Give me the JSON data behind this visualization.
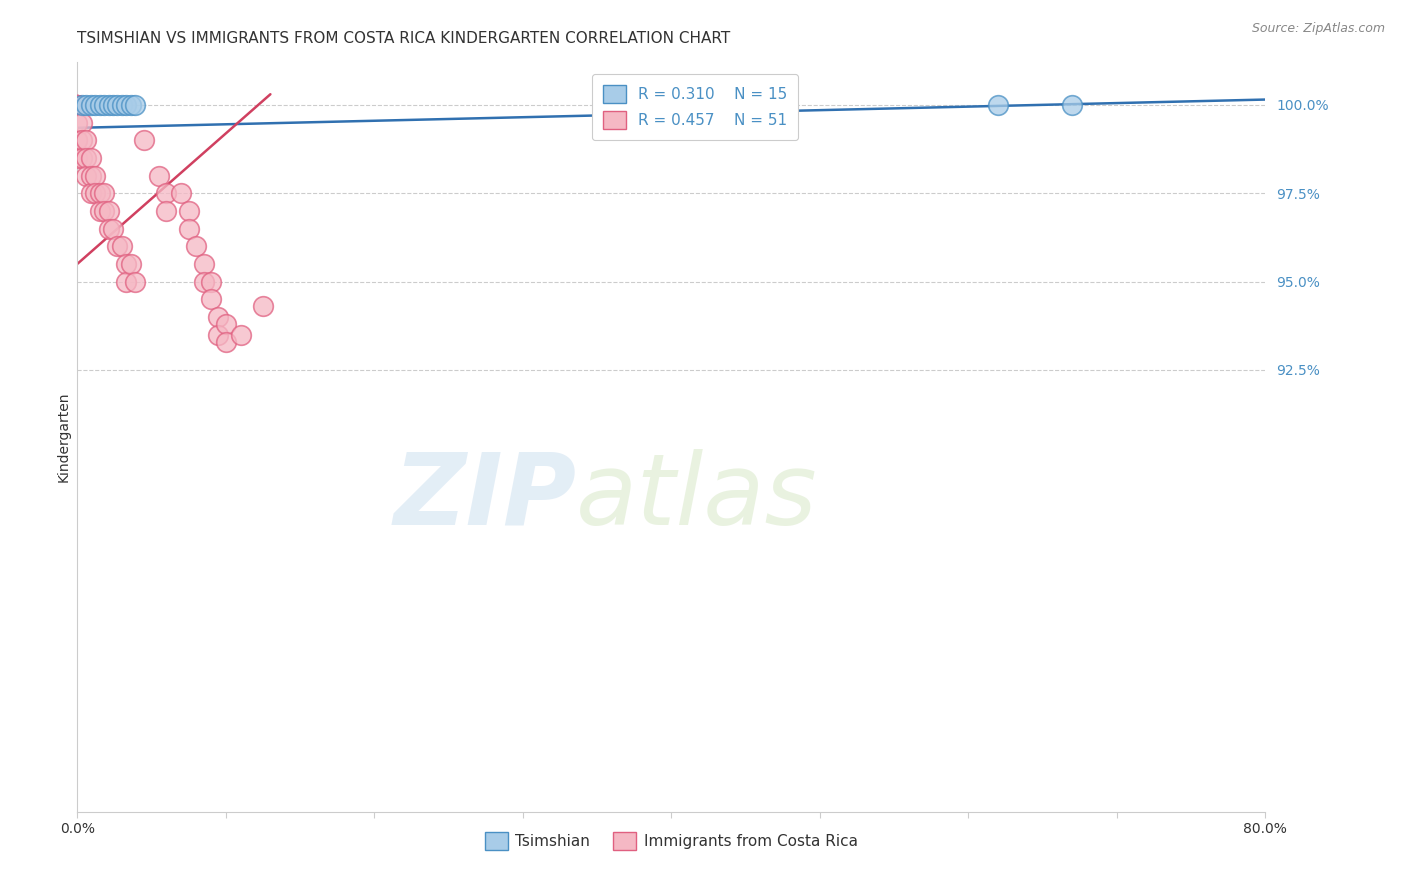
{
  "title": "TSIMSHIAN VS IMMIGRANTS FROM COSTA RICA KINDERGARTEN CORRELATION CHART",
  "source": "Source: ZipAtlas.com",
  "x_min": 0.0,
  "x_max": 80.0,
  "y_min": 80.0,
  "y_max": 101.2,
  "ytick_vals": [
    92.5,
    95.0,
    97.5,
    100.0
  ],
  "ytick_labels": [
    "92.5%",
    "95.0%",
    "97.5%",
    "100.0%"
  ],
  "xtick_vals": [
    0,
    10,
    20,
    30,
    40,
    50,
    60,
    70,
    80
  ],
  "xtick_labels": [
    "0.0%",
    "",
    "",
    "",
    "",
    "",
    "",
    "",
    "80.0%"
  ],
  "watermark_zip": "ZIP",
  "watermark_atlas": "atlas",
  "legend_blue_r": "R = 0.310",
  "legend_blue_n": "N = 15",
  "legend_pink_r": "R = 0.457",
  "legend_pink_n": "N = 51",
  "legend_blue_label": "Tsimshian",
  "legend_pink_label": "Immigrants from Costa Rica",
  "blue_fill": "#a8cce8",
  "blue_edge": "#4a90c4",
  "pink_fill": "#f5b8c4",
  "pink_edge": "#e06080",
  "blue_line_color": "#3070b0",
  "pink_line_color": "#d04060",
  "grid_color": "#cccccc",
  "ytick_color": "#4a90c4",
  "background_color": "#ffffff",
  "title_fontsize": 11,
  "tick_fontsize": 10,
  "legend_fontsize": 11,
  "source_fontsize": 9,
  "tsimshian_x": [
    0.3,
    0.6,
    0.9,
    1.2,
    1.5,
    1.8,
    2.1,
    2.4,
    2.7,
    3.0,
    3.3,
    3.6,
    3.9,
    62.0,
    67.0
  ],
  "tsimshian_y": [
    100.0,
    100.0,
    100.0,
    100.0,
    100.0,
    100.0,
    100.0,
    100.0,
    100.0,
    100.0,
    100.0,
    100.0,
    100.0,
    100.0,
    100.0
  ],
  "costa_rica_x": [
    0.0,
    0.0,
    0.0,
    0.0,
    0.0,
    0.0,
    0.0,
    0.0,
    0.0,
    0.3,
    0.3,
    0.3,
    0.6,
    0.6,
    0.6,
    0.9,
    0.9,
    0.9,
    1.2,
    1.2,
    1.5,
    1.5,
    1.8,
    1.8,
    2.1,
    2.1,
    2.4,
    2.7,
    3.0,
    3.3,
    3.3,
    3.6,
    3.9,
    4.5,
    5.5,
    6.0,
    6.0,
    7.0,
    7.5,
    7.5,
    8.0,
    8.5,
    8.5,
    9.0,
    9.0,
    9.5,
    9.5,
    10.0,
    10.0,
    11.0,
    12.5
  ],
  "costa_rica_y": [
    100.0,
    100.0,
    100.0,
    100.0,
    100.0,
    99.5,
    99.0,
    99.0,
    98.5,
    99.5,
    99.0,
    98.5,
    99.0,
    98.5,
    98.0,
    98.5,
    98.0,
    97.5,
    98.0,
    97.5,
    97.5,
    97.0,
    97.5,
    97.0,
    97.0,
    96.5,
    96.5,
    96.0,
    96.0,
    95.5,
    95.0,
    95.5,
    95.0,
    99.0,
    98.0,
    97.5,
    97.0,
    97.5,
    97.0,
    96.5,
    96.0,
    95.5,
    95.0,
    95.0,
    94.5,
    94.0,
    93.5,
    93.8,
    93.3,
    93.5,
    94.3
  ],
  "blue_trend_x": [
    0.0,
    80.0
  ],
  "blue_trend_y": [
    99.35,
    100.15
  ],
  "pink_trend_x": [
    0.0,
    13.0
  ],
  "pink_trend_y": [
    95.5,
    100.3
  ]
}
